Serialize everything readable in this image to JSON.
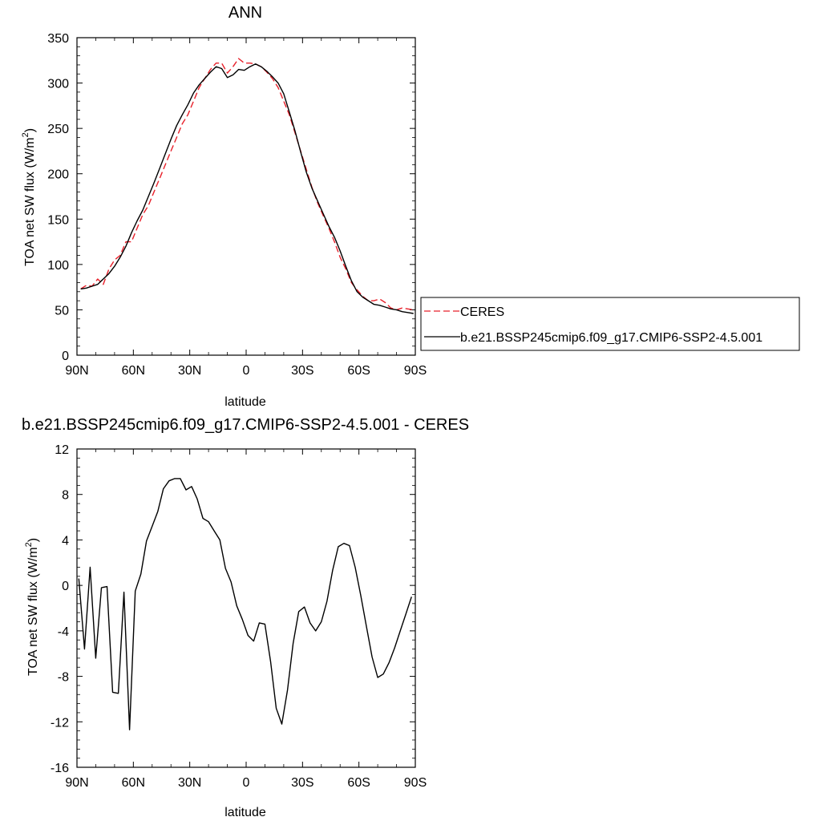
{
  "chart_data": [
    {
      "type": "line",
      "title": "ANN",
      "xlabel": "latitude",
      "ylabel": "TOA net SW flux (W/m",
      "ylabel_sup": "2",
      "ylabel_close": ")",
      "xlim": [
        90,
        -90
      ],
      "ylim": [
        0,
        350
      ],
      "xticks": [
        90,
        60,
        30,
        0,
        -30,
        -60,
        -90
      ],
      "xtick_labels": [
        "90N",
        "60N",
        "30N",
        "0",
        "30S",
        "60S",
        "90S"
      ],
      "yticks": [
        0,
        50,
        100,
        150,
        200,
        250,
        300,
        350
      ],
      "ytick_labels": [
        "0",
        "50",
        "100",
        "150",
        "200",
        "250",
        "300",
        "350"
      ],
      "legend": "right",
      "series": [
        {
          "name": "CERES",
          "color": "#e8202a",
          "dash": "dashed",
          "x": [
            88,
            85,
            82,
            79,
            76,
            73,
            70,
            67,
            64,
            61,
            58,
            55,
            52,
            49,
            46,
            43,
            40,
            37,
            34,
            31,
            28,
            25,
            22,
            19,
            16,
            13,
            10,
            7,
            4,
            1,
            -2,
            -5,
            -8,
            -11,
            -14,
            -17,
            -20,
            -23,
            -26,
            -29,
            -32,
            -35,
            -38,
            -41,
            -44,
            -47,
            -50,
            -53,
            -56,
            -59,
            -62,
            -65,
            -68,
            -71,
            -74,
            -77,
            -80,
            -83,
            -86,
            -89
          ],
          "y": [
            73,
            77,
            76,
            84,
            78,
            95,
            105,
            110,
            125,
            125,
            140,
            155,
            165,
            180,
            195,
            210,
            225,
            240,
            255,
            265,
            280,
            295,
            305,
            315,
            322,
            322,
            311,
            318,
            327,
            322,
            322,
            321,
            318,
            312,
            305,
            295,
            280,
            265,
            245,
            225,
            205,
            185,
            168,
            154,
            140,
            125,
            108,
            95,
            80,
            72,
            65,
            60,
            60,
            62,
            58,
            52,
            50,
            52,
            51,
            50
          ]
        },
        {
          "name": "b.e21.BSSP245cmip6.f09_g17.CMIP6-SSP2-4.5.001",
          "color": "#000000",
          "dash": "solid",
          "x": [
            88,
            85,
            82,
            79,
            76,
            73,
            70,
            67,
            64,
            61,
            58,
            55,
            52,
            49,
            46,
            43,
            40,
            37,
            34,
            31,
            28,
            25,
            22,
            19,
            16,
            13,
            10,
            7,
            4,
            1,
            -2,
            -5,
            -8,
            -11,
            -14,
            -17,
            -20,
            -23,
            -26,
            -29,
            -32,
            -35,
            -38,
            -41,
            -44,
            -47,
            -50,
            -53,
            -56,
            -59,
            -62,
            -65,
            -68,
            -71,
            -74,
            -77,
            -80,
            -83,
            -86,
            -89
          ],
          "y": [
            73,
            74,
            76,
            78,
            84,
            90,
            98,
            108,
            120,
            135,
            148,
            160,
            175,
            190,
            206,
            222,
            238,
            253,
            265,
            276,
            289,
            298,
            305,
            312,
            318,
            316,
            306,
            309,
            315,
            314,
            318,
            321,
            318,
            313,
            307,
            300,
            288,
            268,
            247,
            224,
            202,
            184,
            170,
            156,
            142,
            130,
            115,
            98,
            82,
            70,
            64,
            60,
            56,
            55,
            53,
            51,
            50,
            48,
            47,
            46
          ]
        }
      ]
    },
    {
      "type": "line",
      "title": "b.e21.BSSP245cmip6.f09_g17.CMIP6-SSP2-4.5.001 - CERES",
      "xlabel": "latitude",
      "ylabel": "TOA net SW flux (W/m",
      "ylabel_sup": "2",
      "ylabel_close": ")",
      "xlim": [
        90,
        -90
      ],
      "ylim": [
        -16,
        12
      ],
      "xticks": [
        90,
        60,
        30,
        0,
        -30,
        -60,
        -90
      ],
      "xtick_labels": [
        "90N",
        "60N",
        "30N",
        "0",
        "30S",
        "60S",
        "90S"
      ],
      "yticks": [
        -16,
        -12,
        -8,
        -4,
        0,
        4,
        8,
        12
      ],
      "ytick_labels": [
        "-16",
        "-12",
        "-8",
        "-4",
        "0",
        "4",
        "8",
        "12"
      ],
      "series": [
        {
          "color": "#000000",
          "dash": "solid",
          "x": [
            89,
            86,
            83,
            80,
            77,
            74,
            71,
            68,
            65,
            62,
            59,
            56,
            53,
            50,
            47,
            44,
            41,
            38,
            35,
            32,
            29,
            26,
            23,
            20,
            17,
            14,
            11,
            8,
            5,
            2,
            -1,
            -4,
            -7,
            -10,
            -13,
            -16,
            -19,
            -22,
            -25,
            -28,
            -31,
            -34,
            -37,
            -40,
            -43,
            -46,
            -49,
            -52,
            -55,
            -58,
            -61,
            -64,
            -67,
            -70,
            -73,
            -76,
            -79,
            -82,
            -85,
            -88
          ],
          "y": [
            0.6,
            -5.6,
            1.6,
            -6.4,
            -0.2,
            -0.1,
            -9.4,
            -9.5,
            -0.6,
            -12.7,
            -0.5,
            1.0,
            3.9,
            5.2,
            6.5,
            8.5,
            9.2,
            9.4,
            9.4,
            8.4,
            8.7,
            7.6,
            5.9,
            5.6,
            4.8,
            4.0,
            1.5,
            0.3,
            -1.8,
            -3.0,
            -4.4,
            -4.9,
            -3.3,
            -3.4,
            -6.7,
            -10.8,
            -12.2,
            -9.2,
            -5.1,
            -2.3,
            -1.9,
            -3.3,
            -4.0,
            -3.2,
            -1.4,
            1.3,
            3.4,
            3.7,
            3.5,
            1.6,
            -0.9,
            -3.6,
            -6.3,
            -8.1,
            -7.8,
            -6.8,
            -5.5,
            -4.0,
            -2.5,
            -1.0
          ]
        }
      ]
    }
  ]
}
